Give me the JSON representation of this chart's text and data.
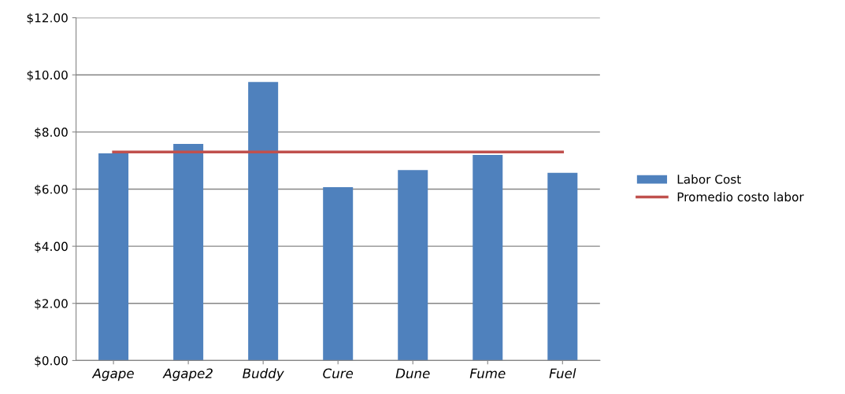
{
  "chart_data": {
    "type": "bar",
    "categories": [
      "Agape",
      "Agape2",
      "Buddy",
      "Cure",
      "Dune",
      "Fume",
      "Fuel"
    ],
    "series": [
      {
        "name": "Labor Cost",
        "color": "#4f81bd",
        "values": [
          7.25,
          7.58,
          9.75,
          6.07,
          6.67,
          7.2,
          6.57
        ]
      },
      {
        "name": "Promedio costo labor",
        "type": "line",
        "color": "#c0504d",
        "values": [
          7.3,
          7.3,
          7.3,
          7.3,
          7.3,
          7.3,
          7.3
        ]
      }
    ],
    "ylim": [
      0,
      12
    ],
    "yticks": [
      {
        "value": 0,
        "label": "$0.00"
      },
      {
        "value": 2,
        "label": "$2.00"
      },
      {
        "value": 4,
        "label": "$4.00"
      },
      {
        "value": 6,
        "label": "$6.00"
      },
      {
        "value": 8,
        "label": "$8.00"
      },
      {
        "value": 10,
        "label": "$10.00"
      },
      {
        "value": 12,
        "label": "$12.00"
      }
    ],
    "grid": "y",
    "legend": "right",
    "marker": "none",
    "line_style": "solid"
  }
}
